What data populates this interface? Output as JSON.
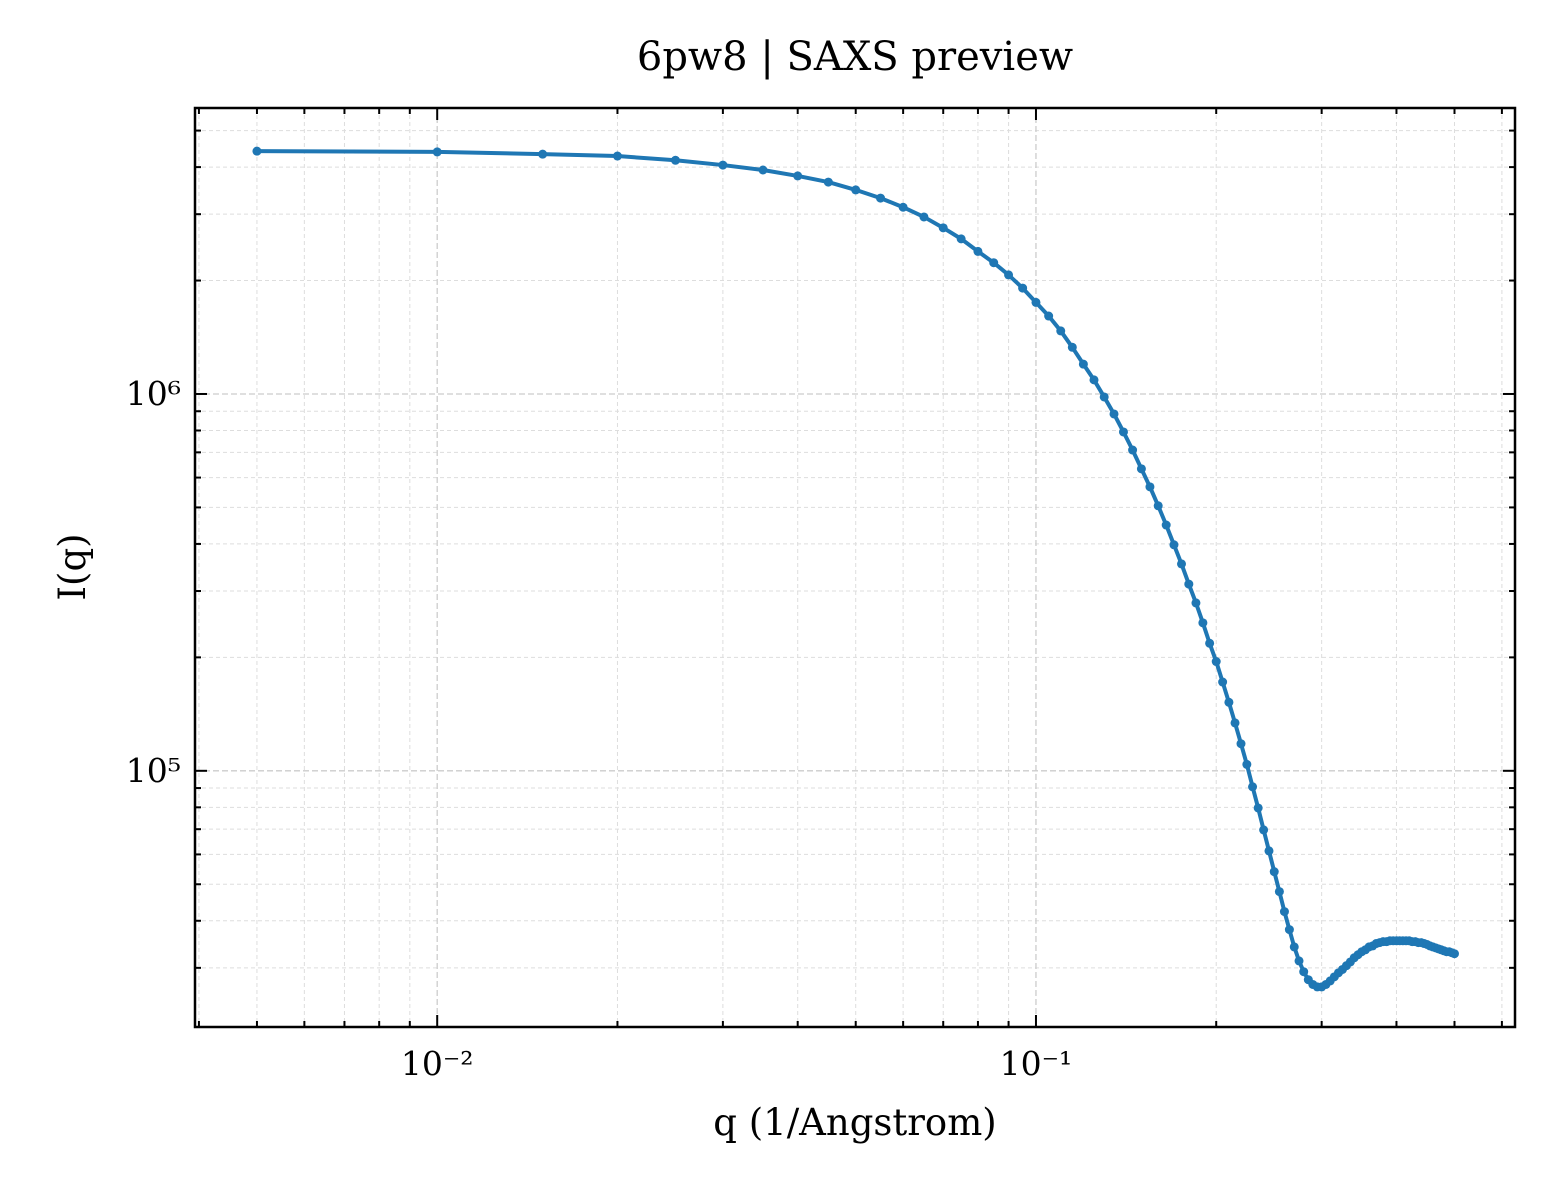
{
  "chart_data": {
    "type": "line",
    "title": "6pw8 | SAXS preview",
    "xlabel": "q (1/Angstrom)",
    "ylabel": "I(q)",
    "x": [
      0.005,
      0.01,
      0.015,
      0.02,
      0.025,
      0.03,
      0.035,
      0.04,
      0.045,
      0.05,
      0.055,
      0.06,
      0.065,
      0.07,
      0.075,
      0.08,
      0.085,
      0.09,
      0.095,
      0.1,
      0.105,
      0.11,
      0.115,
      0.12,
      0.125,
      0.13,
      0.135,
      0.14,
      0.145,
      0.15,
      0.155,
      0.16,
      0.165,
      0.17,
      0.175,
      0.18,
      0.185,
      0.19,
      0.195,
      0.2,
      0.205,
      0.21,
      0.215,
      0.22,
      0.225,
      0.23,
      0.235,
      0.24,
      0.245,
      0.25,
      0.255,
      0.26,
      0.265,
      0.27,
      0.275,
      0.28,
      0.285,
      0.29,
      0.295,
      0.3,
      0.305,
      0.31,
      0.315,
      0.32,
      0.325,
      0.33,
      0.335,
      0.34,
      0.345,
      0.35,
      0.355,
      0.36,
      0.365,
      0.37,
      0.375,
      0.38,
      0.385,
      0.39,
      0.395,
      0.4,
      0.405,
      0.41,
      0.415,
      0.42,
      0.425,
      0.43,
      0.435,
      0.44,
      0.445,
      0.45,
      0.455,
      0.46,
      0.465,
      0.47,
      0.475,
      0.48,
      0.485,
      0.49,
      0.495,
      0.5
    ],
    "values": [
      4410000,
      4390000,
      4330000,
      4280000,
      4170000,
      4050000,
      3930000,
      3790000,
      3650000,
      3480000,
      3310000,
      3130000,
      2950000,
      2760000,
      2580000,
      2390000,
      2230000,
      2070000,
      1910000,
      1750000,
      1610000,
      1470000,
      1330000,
      1200000,
      1090000,
      982000,
      885000,
      793000,
      710000,
      633000,
      567000,
      505000,
      449000,
      398000,
      354000,
      313000,
      279000,
      247000,
      218000,
      195000,
      172000,
      152000,
      134000,
      118000,
      104000,
      90700,
      79700,
      69700,
      61300,
      54000,
      47800,
      42300,
      37900,
      34100,
      31300,
      29300,
      27900,
      27100,
      26700,
      26700,
      27100,
      27700,
      28400,
      29100,
      29700,
      30400,
      31100,
      31900,
      32500,
      33100,
      33500,
      34100,
      34300,
      34800,
      35000,
      35200,
      35200,
      35400,
      35400,
      35400,
      35400,
      35400,
      35400,
      35400,
      35200,
      35200,
      35000,
      35000,
      34800,
      34600,
      34300,
      34100,
      33900,
      33700,
      33500,
      33300,
      33100,
      33100,
      32900,
      32700
    ],
    "color": "#1f77b4",
    "xscale": "log",
    "yscale": "log",
    "xlim": [
      0.00394,
      0.631
    ],
    "ylim": [
      20900,
      5740000
    ],
    "xticks": [
      {
        "value": 0.01,
        "label": "10⁻²"
      },
      {
        "value": 0.1,
        "label": "10⁻¹"
      }
    ],
    "yticks": [
      {
        "value": 100000,
        "label": "10⁵"
      },
      {
        "value": 1000000,
        "label": "10⁶"
      }
    ],
    "xminor_ticks": [
      0.004,
      0.005,
      0.006,
      0.007,
      0.008,
      0.009,
      0.02,
      0.03,
      0.04,
      0.05,
      0.06,
      0.07,
      0.08,
      0.09,
      0.2,
      0.3,
      0.4,
      0.5,
      0.6
    ],
    "yminor_ticks": [
      30000,
      40000,
      50000,
      60000,
      70000,
      80000,
      90000,
      200000,
      300000,
      400000,
      500000,
      600000,
      700000,
      800000,
      900000,
      2000000,
      3000000,
      4000000,
      5000000
    ],
    "grid": true
  }
}
